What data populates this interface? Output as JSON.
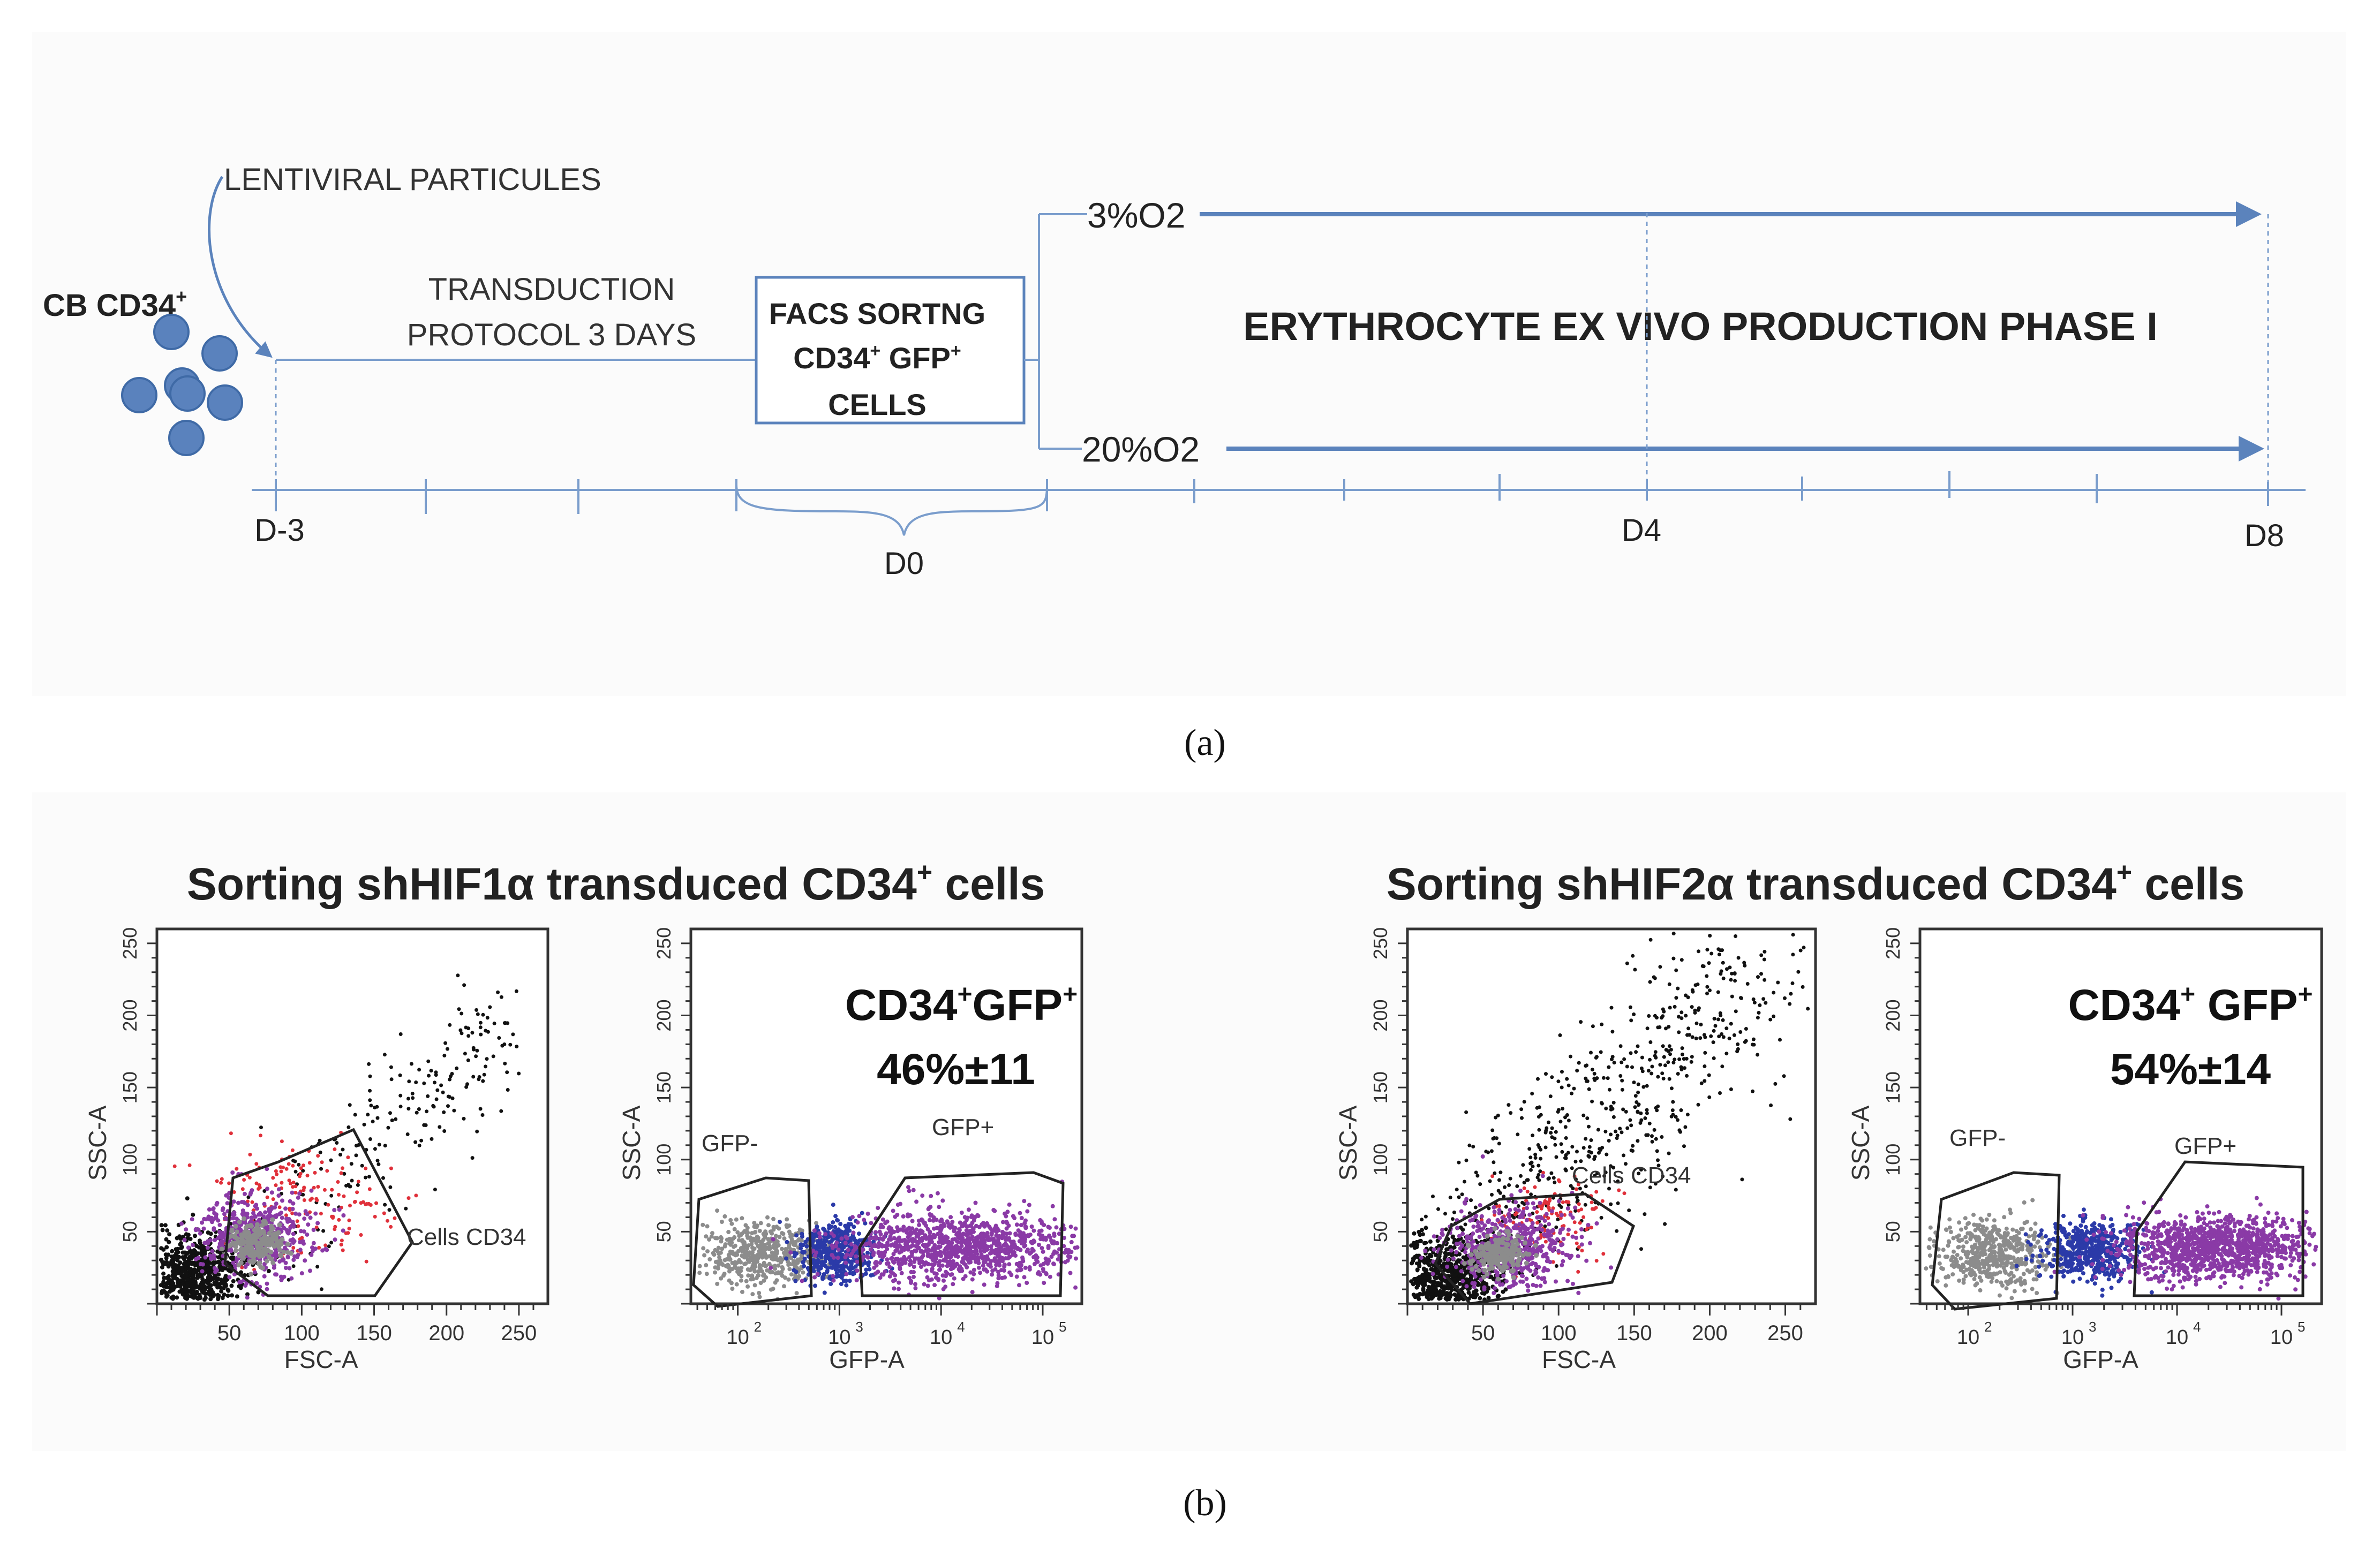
{
  "panel_a": {
    "caption": "(a)",
    "source_label": "CB CD34",
    "source_sup": "+",
    "lentiviral_label": "LENTIVIRAL PARTICULES",
    "transduction_line1": "TRANSDUCTION",
    "transduction_line2": "PROTOCOL 3 DAYS",
    "facs_line1": "FACS SORTNG",
    "facs_line2_a": "CD34",
    "facs_line2_sup1": "+",
    "facs_line2_b": " GFP",
    "facs_line2_sup2": "+",
    "facs_line3": "CELLS",
    "o2_low": "3%O2",
    "o2_high": "20%O2",
    "phase_label": "ERYTHROCYTE EX VIVO PRODUCTION PHASE I",
    "timeline": {
      "d_minus3": "D-3",
      "d0": "D0",
      "d4": "D4",
      "d8": "D8"
    },
    "colors": {
      "cell_fill": "#5a82bd",
      "cell_stroke": "#3f6aa6",
      "arrow": "#5b83bc",
      "axis": "#7a9dcc"
    }
  },
  "panel_b": {
    "caption": "(b)",
    "groups": [
      {
        "title_pre": "Sorting shHIF1α transduced CD34",
        "title_sup": "+",
        "title_post": " cells",
        "scatter_plot": {
          "gate_label": "Cells CD34",
          "x_axis_label": "FSC-A",
          "y_axis_label": "SSC-A",
          "x_ticks": [
            "50",
            "100",
            "150",
            "200",
            "250"
          ],
          "y_ticks": [
            "50",
            "100",
            "150",
            "200",
            "250"
          ]
        },
        "gfp_plot": {
          "result_label_a": "CD34",
          "result_sup1": "+",
          "result_label_b": "GFP",
          "result_sup2": "+",
          "result_value": "46%±11",
          "gate_neg": "GFP-",
          "gate_pos": "GFP+",
          "x_axis_label": "GFP-A",
          "y_axis_label": "SSC-A",
          "x_ticks_base": [
            "10",
            "10",
            "10",
            "10"
          ],
          "x_ticks_exp": [
            "2",
            "3",
            "4",
            "5"
          ],
          "y_ticks": [
            "50",
            "100",
            "150",
            "200",
            "250"
          ]
        }
      },
      {
        "title_pre": "Sorting shHIF2α transduced CD34",
        "title_sup": "+",
        "title_post": " cells",
        "scatter_plot": {
          "gate_label": "Cells CD34",
          "x_axis_label": "FSC-A",
          "y_axis_label": "SSC-A",
          "x_ticks": [
            "50",
            "100",
            "150",
            "200",
            "250"
          ],
          "y_ticks": [
            "50",
            "100",
            "150",
            "200",
            "250"
          ]
        },
        "gfp_plot": {
          "result_label_a": "CD34",
          "result_sup1": "+",
          "result_label_b": " GFP",
          "result_sup2": "+",
          "result_value": "54%±14",
          "gate_neg": "GFP-",
          "gate_pos": "GFP+",
          "x_axis_label": "GFP-A",
          "y_axis_label": "SSC-A",
          "x_ticks_base": [
            "10",
            "10",
            "10",
            "10"
          ],
          "x_ticks_exp": [
            "2",
            "3",
            "4",
            "5"
          ],
          "y_ticks": [
            "50",
            "100",
            "150",
            "200",
            "250"
          ]
        }
      }
    ],
    "colors": {
      "dots_black": "#111111",
      "dots_gray": "#8c8c8c",
      "dots_blue": "#2b3aa8",
      "dots_purple": "#8a3aa6",
      "dots_red": "#e0303a"
    }
  }
}
